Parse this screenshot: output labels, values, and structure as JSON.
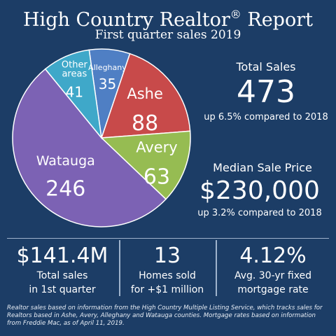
{
  "header": {
    "title": "High Country Realtor",
    "title_mark": "®",
    "title_suffix": " Report",
    "subtitle": "First quarter sales 2019"
  },
  "chart_data": {
    "type": "pie",
    "slices": [
      {
        "label": "Alleghany",
        "value": 35,
        "color": "#4f7fc4"
      },
      {
        "label": "Ashe",
        "value": 88,
        "color": "#c84a4a"
      },
      {
        "label": "Avery",
        "value": 63,
        "color": "#96bc52"
      },
      {
        "label": "Watauga",
        "value": 246,
        "color": "#7c62b4"
      },
      {
        "label": "Other areas",
        "value": 41,
        "color": "#3fa8c9"
      }
    ]
  },
  "total_sales": {
    "label": "Total Sales",
    "value": "473",
    "change": "up 6.5% compared to 2018"
  },
  "median_price": {
    "label": "Median Sale Price",
    "value": "$230,000",
    "change": "up 3.2% compared to 2018"
  },
  "stats": [
    {
      "value": "$141.4M",
      "line1": "Total sales",
      "line2": "in 1st quarter"
    },
    {
      "value": "13",
      "line1": "Homes sold",
      "line2": "for +$1 million"
    },
    {
      "value": "4.12%",
      "line1": "Avg. 30-yr fixed",
      "line2": "mortgage rate"
    }
  ],
  "footnote": "Realtor sales based on information from the High Country Multiple Listing Service, which tracks sales for Realtors based in Ashe, Avery, Alleghany and Watauga counties. Mortgage rates based on information from Freddie Mac, as of April 11, 2019.",
  "colors": {
    "background": "#1c3d66",
    "divider": "#9fb3cc"
  }
}
